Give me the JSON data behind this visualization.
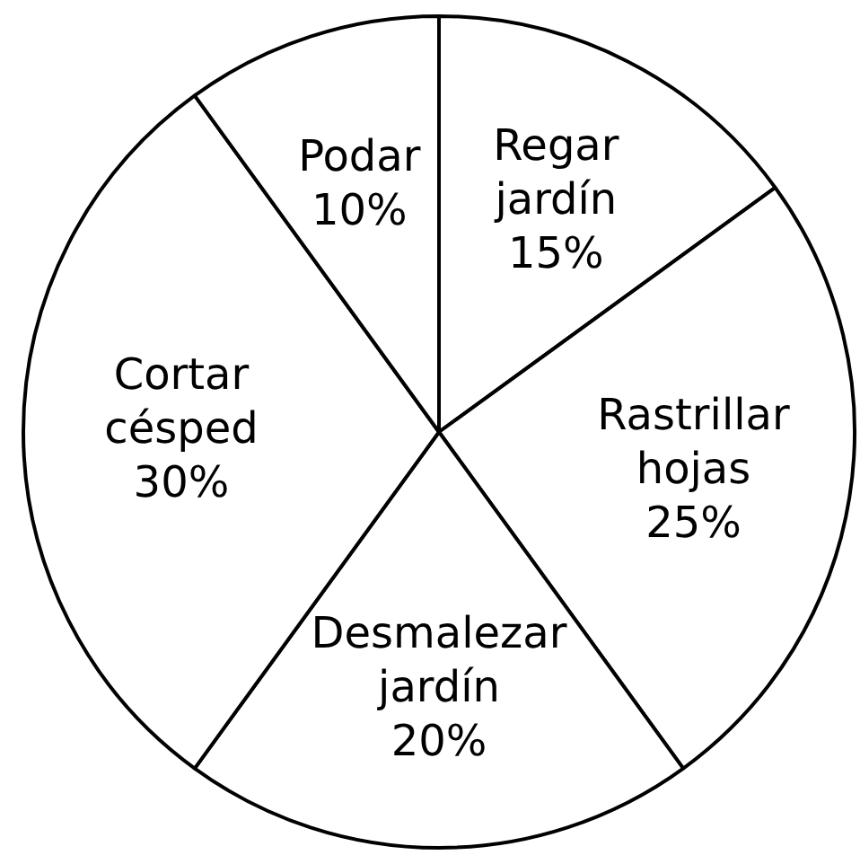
{
  "chart_data": {
    "type": "pie",
    "categories": [
      "Regar jardín",
      "Rastrillar hojas",
      "Desmalezar jardín",
      "Cortar césped",
      "Podar"
    ],
    "values": [
      15,
      25,
      20,
      30,
      10
    ],
    "colors": [
      "#ffffff",
      "#ffffff",
      "#ffffff",
      "#ffffff",
      "#ffffff"
    ],
    "value_labels": [
      "15%",
      "25%",
      "20%",
      "30%",
      "10%"
    ],
    "legend": false
  }
}
